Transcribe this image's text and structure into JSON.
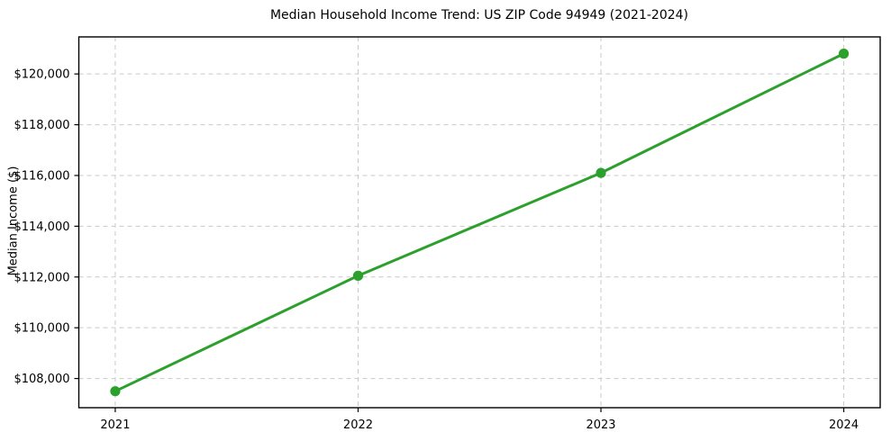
{
  "chart_data": {
    "type": "line",
    "title": "Median Household Income Trend: US ZIP Code 94949 (2021-2024)",
    "xlabel": "",
    "ylabel": "Median Income ($)",
    "x": [
      2021,
      2022,
      2023,
      2024
    ],
    "x_tick_labels": [
      "2021",
      "2022",
      "2023",
      "2024"
    ],
    "series": [
      {
        "name": "Median Household Income",
        "values": [
          107500,
          112050,
          116100,
          120800
        ]
      }
    ],
    "y_ticks": [
      108000,
      110000,
      112000,
      114000,
      116000,
      118000,
      120000
    ],
    "y_tick_labels": [
      "$108,000",
      "$110,000",
      "$112,000",
      "$114,000",
      "$116,000",
      "$118,000",
      "$120,000"
    ],
    "xlim": [
      2020.85,
      2024.15
    ],
    "ylim": [
      106850,
      121460
    ],
    "grid": true,
    "legend_position": "none",
    "line_color": "#2ca02c",
    "marker": "circle",
    "grid_color": "#c9c9c9",
    "spine_color": "#000000",
    "text_color": "#000000",
    "background_color": "#ffffff"
  }
}
